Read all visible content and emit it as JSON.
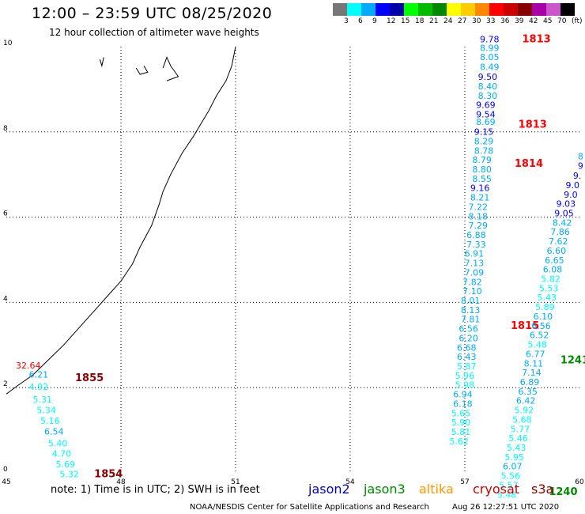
{
  "header": {
    "title": "12:00 – 23:59 UTC 08/25/2020",
    "subtitle": "12 hour collection of altimeter wave heights"
  },
  "legend": {
    "colors": [
      "#777777",
      "#00ffff",
      "#00aaff",
      "#0000ff",
      "#0000aa",
      "#00ff00",
      "#00bb00",
      "#008800",
      "#ffff00",
      "#ffcc00",
      "#ff8800",
      "#ff0000",
      "#cc0000",
      "#880000",
      "#aa00aa",
      "#cc55cc",
      "#000000"
    ],
    "labels": [
      "3",
      "6",
      "9",
      "12",
      "15",
      "18",
      "21",
      "24",
      "27",
      "30",
      "33",
      "36",
      "39",
      "42",
      "45",
      "70",
      "(ft)"
    ]
  },
  "map": {
    "lon_min": 45,
    "lon_max": 60,
    "lat_min": 0,
    "lat_max": 10,
    "x_ticks": [
      "45",
      "48",
      "51",
      "54",
      "57",
      "60"
    ],
    "y_ticks": [
      "0",
      "2",
      "4",
      "6",
      "8",
      "10"
    ],
    "grid": true
  },
  "tracks": [
    {
      "time": "1855",
      "time_color": "#880000",
      "time_lon": 46.8,
      "time_lat": 2.15,
      "points": [
        {
          "lon": 45.9,
          "lat": 2.45,
          "v": "32.64",
          "c": "#ff0000"
        },
        {
          "lon": 46.1,
          "lat": 2.24,
          "v": "6.21",
          "c": "#00aaff"
        },
        {
          "lon": 46.1,
          "lat": 1.95,
          "v": "4.92",
          "c": "#00ffff"
        },
        {
          "lon": 46.2,
          "lat": 1.65,
          "v": "5.31",
          "c": "#00ffff"
        },
        {
          "lon": 46.3,
          "lat": 1.4,
          "v": "5.34",
          "c": "#00ffff"
        },
        {
          "lon": 46.4,
          "lat": 1.15,
          "v": "5.16",
          "c": "#00ffff"
        },
        {
          "lon": 46.5,
          "lat": 0.9,
          "v": "6.54",
          "c": "#00aaff"
        },
        {
          "lon": 46.6,
          "lat": 0.62,
          "v": "5.40",
          "c": "#00ffff"
        },
        {
          "lon": 46.7,
          "lat": 0.38,
          "v": "4.70",
          "c": "#00ffff"
        },
        {
          "lon": 46.8,
          "lat": 0.13,
          "v": "5.69",
          "c": "#00ffff"
        },
        {
          "lon": 46.9,
          "lat": -0.1,
          "v": "5.32",
          "c": "#00ffff"
        }
      ]
    },
    {
      "time": "1854",
      "time_color": "#880000",
      "time_lon": 47.3,
      "time_lat": -0.1,
      "points": []
    },
    {
      "time": "1813",
      "time_color": "#ff0000",
      "time_lon": 58.5,
      "time_lat": 10.1,
      "points": [
        {
          "lon": 57.9,
          "lat": 10.1,
          "v": "9.78",
          "c": "#0000ff"
        },
        {
          "lon": 57.9,
          "lat": 9.9,
          "v": "8.99",
          "c": "#00aaff"
        },
        {
          "lon": 57.9,
          "lat": 9.68,
          "v": "8.05",
          "c": "#00aaff"
        },
        {
          "lon": 57.9,
          "lat": 9.45,
          "v": "8.49",
          "c": "#00aaff"
        },
        {
          "lon": 57.85,
          "lat": 9.22,
          "v": "9.50",
          "c": "#0000ff"
        },
        {
          "lon": 57.85,
          "lat": 9.0,
          "v": "8.40",
          "c": "#00aaff"
        },
        {
          "lon": 57.85,
          "lat": 8.78,
          "v": "8.30",
          "c": "#00aaff"
        },
        {
          "lon": 57.8,
          "lat": 8.56,
          "v": "9.69",
          "c": "#0000ff"
        },
        {
          "lon": 57.8,
          "lat": 8.34,
          "v": "9.54",
          "c": "#0000ff"
        },
        {
          "lon": 57.8,
          "lat": 8.16,
          "v": "8.69",
          "c": "#00aaff"
        },
        {
          "lon": 57.75,
          "lat": 7.93,
          "v": "9.15",
          "c": "#0000ff"
        },
        {
          "lon": 57.75,
          "lat": 7.71,
          "v": "8.29",
          "c": "#00aaff"
        },
        {
          "lon": 57.75,
          "lat": 7.49,
          "v": "8.78",
          "c": "#00aaff"
        },
        {
          "lon": 57.7,
          "lat": 7.27,
          "v": "8.79",
          "c": "#00aaff"
        },
        {
          "lon": 57.7,
          "lat": 7.05,
          "v": "8.80",
          "c": "#00aaff"
        },
        {
          "lon": 57.7,
          "lat": 6.83,
          "v": "8.55",
          "c": "#00aaff"
        },
        {
          "lon": 57.65,
          "lat": 6.61,
          "v": "9.16",
          "c": "#0000ff"
        },
        {
          "lon": 57.65,
          "lat": 6.39,
          "v": "8.21",
          "c": "#00aaff"
        },
        {
          "lon": 57.6,
          "lat": 6.17,
          "v": "7.22",
          "c": "#00aaff"
        },
        {
          "lon": 57.6,
          "lat": 5.95,
          "v": "8.18",
          "c": "#00aaff"
        },
        {
          "lon": 57.6,
          "lat": 5.73,
          "v": "7.29",
          "c": "#00aaff"
        },
        {
          "lon": 57.55,
          "lat": 5.51,
          "v": "6.88",
          "c": "#00aaff"
        },
        {
          "lon": 57.55,
          "lat": 5.29,
          "v": "7.33",
          "c": "#00aaff"
        },
        {
          "lon": 57.5,
          "lat": 5.07,
          "v": "6.91",
          "c": "#00aaff"
        },
        {
          "lon": 57.5,
          "lat": 4.85,
          "v": "7.13",
          "c": "#00aaff"
        },
        {
          "lon": 57.5,
          "lat": 4.63,
          "v": "7.09",
          "c": "#00aaff"
        },
        {
          "lon": 57.45,
          "lat": 4.41,
          "v": "7.82",
          "c": "#00aaff"
        },
        {
          "lon": 57.45,
          "lat": 4.19,
          "v": "7.10",
          "c": "#00aaff"
        },
        {
          "lon": 57.4,
          "lat": 3.97,
          "v": "8.01",
          "c": "#00aaff"
        },
        {
          "lon": 57.4,
          "lat": 3.75,
          "v": "8.13",
          "c": "#00aaff"
        },
        {
          "lon": 57.4,
          "lat": 3.53,
          "v": "7.81",
          "c": "#00aaff"
        },
        {
          "lon": 57.35,
          "lat": 3.31,
          "v": "6.56",
          "c": "#00aaff"
        },
        {
          "lon": 57.35,
          "lat": 3.09,
          "v": "6.20",
          "c": "#00aaff"
        },
        {
          "lon": 57.3,
          "lat": 2.87,
          "v": "6.68",
          "c": "#00aaff"
        },
        {
          "lon": 57.3,
          "lat": 2.65,
          "v": "6.43",
          "c": "#00aaff"
        },
        {
          "lon": 57.3,
          "lat": 2.43,
          "v": "5.87",
          "c": "#00ffff"
        },
        {
          "lon": 57.25,
          "lat": 2.21,
          "v": "5.96",
          "c": "#00ffff"
        },
        {
          "lon": 57.25,
          "lat": 1.99,
          "v": "5.98",
          "c": "#00ffff"
        },
        {
          "lon": 57.2,
          "lat": 1.77,
          "v": "6.94",
          "c": "#00aaff"
        },
        {
          "lon": 57.2,
          "lat": 1.55,
          "v": "6.18",
          "c": "#00aaff"
        },
        {
          "lon": 57.15,
          "lat": 1.33,
          "v": "5.65",
          "c": "#00ffff"
        },
        {
          "lon": 57.15,
          "lat": 1.11,
          "v": "5.90",
          "c": "#00ffff"
        },
        {
          "lon": 57.15,
          "lat": 0.89,
          "v": "5.81",
          "c": "#00ffff"
        },
        {
          "lon": 57.1,
          "lat": 0.67,
          "v": "5.62",
          "c": "#00ffff"
        }
      ]
    },
    {
      "time": "1813",
      "time_color": "#ff0000",
      "time_lon": 58.4,
      "time_lat": 8.1,
      "points": []
    },
    {
      "time": "1814",
      "time_color": "#ff0000",
      "time_lon": 58.3,
      "time_lat": 7.18,
      "points": []
    },
    {
      "time": "1815",
      "time_color": "#ff0000",
      "time_lon": 58.2,
      "time_lat": 3.38,
      "points": []
    },
    {
      "time": "1241",
      "time_color": "#008800",
      "time_lon": 59.5,
      "time_lat": 2.57,
      "points": [
        {
          "lon": 60.1,
          "lat": 7.36,
          "v": "8",
          "c": "#00aaff"
        },
        {
          "lon": 60.1,
          "lat": 7.13,
          "v": "9",
          "c": "#0000ff"
        },
        {
          "lon": 60.05,
          "lat": 6.9,
          "v": "9.",
          "c": "#0000ff"
        },
        {
          "lon": 60.0,
          "lat": 6.68,
          "v": "9.0",
          "c": "#0000ff"
        },
        {
          "lon": 59.95,
          "lat": 6.46,
          "v": "9.0",
          "c": "#0000ff"
        },
        {
          "lon": 59.9,
          "lat": 6.24,
          "v": "9.03",
          "c": "#0000ff"
        },
        {
          "lon": 59.85,
          "lat": 6.02,
          "v": "9.05",
          "c": "#0000ff"
        },
        {
          "lon": 59.8,
          "lat": 5.8,
          "v": "8.42",
          "c": "#00aaff"
        },
        {
          "lon": 59.75,
          "lat": 5.58,
          "v": "7.86",
          "c": "#00aaff"
        },
        {
          "lon": 59.7,
          "lat": 5.36,
          "v": "7.62",
          "c": "#00aaff"
        },
        {
          "lon": 59.65,
          "lat": 5.14,
          "v": "6.60",
          "c": "#00aaff"
        },
        {
          "lon": 59.6,
          "lat": 4.92,
          "v": "6.65",
          "c": "#00aaff"
        },
        {
          "lon": 59.55,
          "lat": 4.7,
          "v": "6.08",
          "c": "#00aaff"
        },
        {
          "lon": 59.5,
          "lat": 4.48,
          "v": "5.82",
          "c": "#00ffff"
        },
        {
          "lon": 59.45,
          "lat": 4.26,
          "v": "5.53",
          "c": "#00ffff"
        },
        {
          "lon": 59.4,
          "lat": 4.04,
          "v": "5.43",
          "c": "#00ffff"
        },
        {
          "lon": 59.35,
          "lat": 3.82,
          "v": "5.89",
          "c": "#00ffff"
        },
        {
          "lon": 59.3,
          "lat": 3.6,
          "v": "6.10",
          "c": "#00aaff"
        },
        {
          "lon": 59.25,
          "lat": 3.38,
          "v": "6.56",
          "c": "#00aaff"
        },
        {
          "lon": 59.2,
          "lat": 3.16,
          "v": "6.52",
          "c": "#00aaff"
        },
        {
          "lon": 59.15,
          "lat": 2.94,
          "v": "5.48",
          "c": "#00ffff"
        },
        {
          "lon": 59.1,
          "lat": 2.72,
          "v": "6.77",
          "c": "#00aaff"
        },
        {
          "lon": 59.05,
          "lat": 2.5,
          "v": "8.11",
          "c": "#00aaff"
        },
        {
          "lon": 59.0,
          "lat": 2.28,
          "v": "7.14",
          "c": "#00aaff"
        },
        {
          "lon": 58.95,
          "lat": 2.06,
          "v": "6.89",
          "c": "#00aaff"
        },
        {
          "lon": 58.9,
          "lat": 1.84,
          "v": "6.35",
          "c": "#00aaff"
        },
        {
          "lon": 58.85,
          "lat": 1.62,
          "v": "6.42",
          "c": "#00aaff"
        },
        {
          "lon": 58.8,
          "lat": 1.4,
          "v": "5.92",
          "c": "#00ffff"
        },
        {
          "lon": 58.75,
          "lat": 1.18,
          "v": "5.68",
          "c": "#00ffff"
        },
        {
          "lon": 58.7,
          "lat": 0.96,
          "v": "5.77",
          "c": "#00ffff"
        },
        {
          "lon": 58.65,
          "lat": 0.74,
          "v": "5.46",
          "c": "#00ffff"
        },
        {
          "lon": 58.6,
          "lat": 0.52,
          "v": "5.43",
          "c": "#00ffff"
        },
        {
          "lon": 58.55,
          "lat": 0.3,
          "v": "5.95",
          "c": "#00ffff"
        },
        {
          "lon": 58.5,
          "lat": 0.08,
          "v": "6.07",
          "c": "#00aaff"
        },
        {
          "lon": 58.45,
          "lat": -0.14,
          "v": "5.56",
          "c": "#00ffff"
        },
        {
          "lon": 58.4,
          "lat": -0.36,
          "v": "5.57",
          "c": "#00ffff"
        },
        {
          "lon": 58.35,
          "lat": -0.58,
          "v": "5.48",
          "c": "#00ffff"
        }
      ]
    },
    {
      "time": "1240",
      "time_color": "#008800",
      "time_lon": 59.2,
      "time_lat": -0.52,
      "points": []
    }
  ],
  "coastline": [
    [
      51.0,
      10.0
    ],
    [
      50.9,
      9.55
    ],
    [
      50.75,
      9.2
    ],
    [
      50.5,
      8.85
    ],
    [
      50.3,
      8.5
    ],
    [
      50.1,
      8.2
    ],
    [
      49.9,
      7.9
    ],
    [
      49.6,
      7.5
    ],
    [
      49.3,
      7.0
    ],
    [
      49.1,
      6.6
    ],
    [
      49.0,
      6.3
    ],
    [
      48.8,
      5.8
    ],
    [
      48.5,
      5.3
    ],
    [
      48.3,
      4.9
    ],
    [
      48.0,
      4.5
    ],
    [
      47.6,
      4.1
    ],
    [
      47.3,
      3.8
    ],
    [
      47.0,
      3.5
    ],
    [
      46.5,
      3.0
    ],
    [
      46.1,
      2.65
    ],
    [
      45.7,
      2.3
    ],
    [
      45.3,
      2.05
    ],
    [
      45.0,
      1.85
    ]
  ],
  "islands": [
    [
      [
        47.45,
        9.7
      ],
      [
        47.5,
        9.55
      ],
      [
        47.55,
        9.75
      ]
    ],
    [
      [
        48.4,
        9.5
      ],
      [
        48.5,
        9.35
      ],
      [
        48.7,
        9.4
      ],
      [
        48.6,
        9.55
      ]
    ],
    [
      [
        49.1,
        9.5
      ],
      [
        49.2,
        9.75
      ],
      [
        49.3,
        9.55
      ],
      [
        49.5,
        9.3
      ],
      [
        49.2,
        9.2
      ]
    ]
  ],
  "footer": {
    "note": "note:  1) Time is in UTC;  2) SWH is in feet",
    "satellites": [
      {
        "name": "jason2",
        "color": "#0000cc",
        "left": 390
      },
      {
        "name": "jason3",
        "color": "#008800",
        "left": 460
      },
      {
        "name": "altika",
        "color": "#ff9900",
        "left": 530
      },
      {
        "name": "cryosat",
        "color": "#cc0000",
        "left": 598
      },
      {
        "name": "s3a",
        "color": "#880000",
        "left": 672
      }
    ],
    "credit": "NOAA/NESDIS Center for Satellite Applications and Research",
    "timestamp": "Aug 26 12:27:51 UTC 2020"
  }
}
